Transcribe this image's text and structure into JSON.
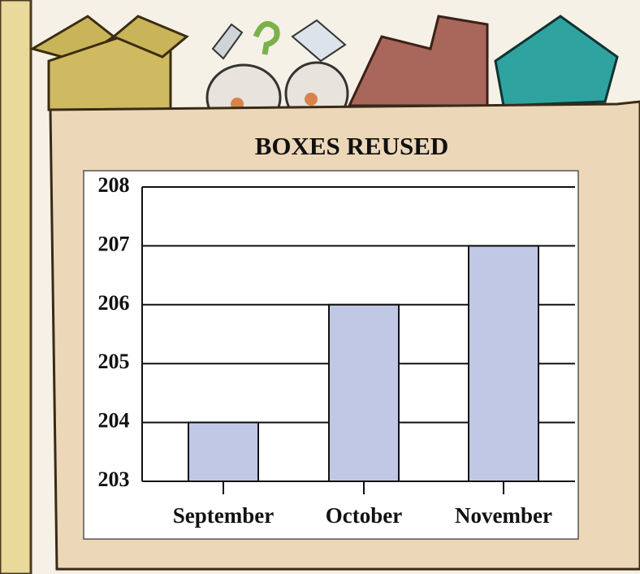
{
  "chart_data": {
    "type": "bar",
    "title": "BOXES REUSED",
    "categories": [
      "September",
      "October",
      "November"
    ],
    "values": [
      204,
      206,
      207
    ],
    "color": "#c0c8e6",
    "ylim": [
      203,
      208
    ],
    "yticks": [
      203,
      204,
      205,
      206,
      207,
      208
    ],
    "grid": true
  }
}
